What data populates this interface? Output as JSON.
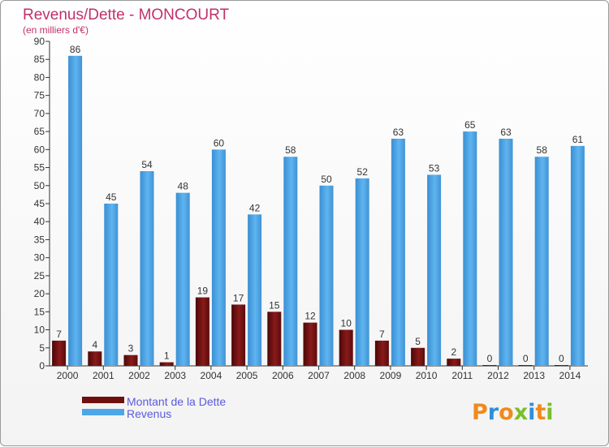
{
  "chart_data": {
    "type": "bar",
    "title": "Revenus/Dette - MONCOURT",
    "subtitle": "(en milliers d'€)",
    "categories": [
      "2000",
      "2001",
      "2002",
      "2003",
      "2004",
      "2005",
      "2006",
      "2007",
      "2008",
      "2009",
      "2010",
      "2011",
      "2012",
      "2013",
      "2014"
    ],
    "series": [
      {
        "name": "Montant de la Dette",
        "color": "#6e0f0f",
        "values": [
          7,
          4,
          3,
          1,
          19,
          17,
          15,
          12,
          10,
          7,
          5,
          2,
          0,
          0,
          0
        ]
      },
      {
        "name": "Revenus",
        "color": "#4da6e8",
        "values": [
          86,
          45,
          54,
          48,
          60,
          42,
          58,
          50,
          52,
          63,
          53,
          65,
          63,
          58,
          61
        ]
      }
    ],
    "ylim": [
      0,
      90
    ],
    "yticks": [
      0,
      5,
      10,
      15,
      20,
      25,
      30,
      35,
      40,
      45,
      50,
      55,
      60,
      65,
      70,
      75,
      80,
      85,
      90
    ],
    "grid": false,
    "legend_position": "bottom-left"
  },
  "logo": {
    "text": "Proxiti",
    "colors": [
      "#f08a1c",
      "#2d8fd8",
      "#f08a1c",
      "#7bbf2a",
      "#2d8fd8",
      "#f08a1c",
      "#7bbf2a"
    ]
  }
}
